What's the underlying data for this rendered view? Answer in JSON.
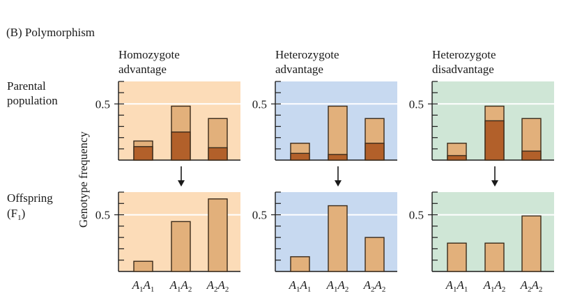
{
  "figure": {
    "title": "(B)  Polymorphism",
    "ylabel": "Genotype frequency",
    "row_labels": [
      {
        "lines": [
          "Parental",
          "population"
        ]
      },
      {
        "lines": [
          "Offspring",
          "(F",
          "1",
          ")"
        ]
      }
    ],
    "genotype_labels": [
      {
        "allele": "A",
        "s1": "1",
        "s2": "1"
      },
      {
        "allele": "A",
        "s1": "1",
        "s2": "2"
      },
      {
        "allele": "A",
        "s1": "2",
        "s2": "2"
      }
    ]
  },
  "colors": {
    "light_bar": "#e2b07b",
    "dark_bar": "#b2602a",
    "bar_stroke": "#3a2a1a",
    "gridline": "#ffffff",
    "axis": "#1a1a1a"
  },
  "chart_data": [
    {
      "type": "bar",
      "panel": "Homozygote advantage",
      "row": "Parental population",
      "title_lines": [
        "Homozygote",
        "advantage"
      ],
      "background": "#fcdcb8",
      "categories": [
        "A1A1",
        "A1A2",
        "A2A2"
      ],
      "ytick_label": "0.5",
      "ylim": [
        0,
        0.7
      ],
      "series": [
        {
          "name": "total",
          "values": [
            0.17,
            0.48,
            0.37
          ]
        },
        {
          "name": "dark",
          "values": [
            0.12,
            0.25,
            0.11
          ]
        }
      ]
    },
    {
      "type": "bar",
      "panel": "Heterozygote advantage",
      "row": "Parental population",
      "title_lines": [
        "Heterozygote",
        "advantage"
      ],
      "background": "#c7d9f0",
      "categories": [
        "A1A1",
        "A1A2",
        "A2A2"
      ],
      "ytick_label": "0.5",
      "ylim": [
        0,
        0.7
      ],
      "series": [
        {
          "name": "total",
          "values": [
            0.15,
            0.48,
            0.37
          ]
        },
        {
          "name": "dark",
          "values": [
            0.06,
            0.05,
            0.15
          ]
        }
      ]
    },
    {
      "type": "bar",
      "panel": "Heterozygote disadvantage",
      "row": "Parental population",
      "title_lines": [
        "Heterozygote",
        "disadvantage"
      ],
      "background": "#cfe6d6",
      "categories": [
        "A1A1",
        "A1A2",
        "A2A2"
      ],
      "ytick_label": "0.5",
      "ylim": [
        0,
        0.7
      ],
      "series": [
        {
          "name": "total",
          "values": [
            0.15,
            0.48,
            0.37
          ]
        },
        {
          "name": "dark",
          "values": [
            0.04,
            0.35,
            0.08
          ]
        }
      ]
    },
    {
      "type": "bar",
      "panel": "Homozygote advantage",
      "row": "Offspring (F1)",
      "background": "#fcdcb8",
      "categories": [
        "A1A1",
        "A1A2",
        "A2A2"
      ],
      "ytick_label": "0.5",
      "ylim": [
        0,
        0.7
      ],
      "series": [
        {
          "name": "total",
          "values": [
            0.09,
            0.44,
            0.64
          ]
        }
      ]
    },
    {
      "type": "bar",
      "panel": "Heterozygote advantage",
      "row": "Offspring (F1)",
      "background": "#c7d9f0",
      "categories": [
        "A1A1",
        "A1A2",
        "A2A2"
      ],
      "ytick_label": "0.5",
      "ylim": [
        0,
        0.7
      ],
      "series": [
        {
          "name": "total",
          "values": [
            0.13,
            0.58,
            0.3
          ]
        }
      ]
    },
    {
      "type": "bar",
      "panel": "Heterozygote disadvantage",
      "row": "Offspring (F1)",
      "background": "#cfe6d6",
      "categories": [
        "A1A1",
        "A1A2",
        "A2A2"
      ],
      "ytick_label": "0.5",
      "ylim": [
        0,
        0.7
      ],
      "series": [
        {
          "name": "total",
          "values": [
            0.25,
            0.25,
            0.49
          ]
        }
      ]
    }
  ]
}
